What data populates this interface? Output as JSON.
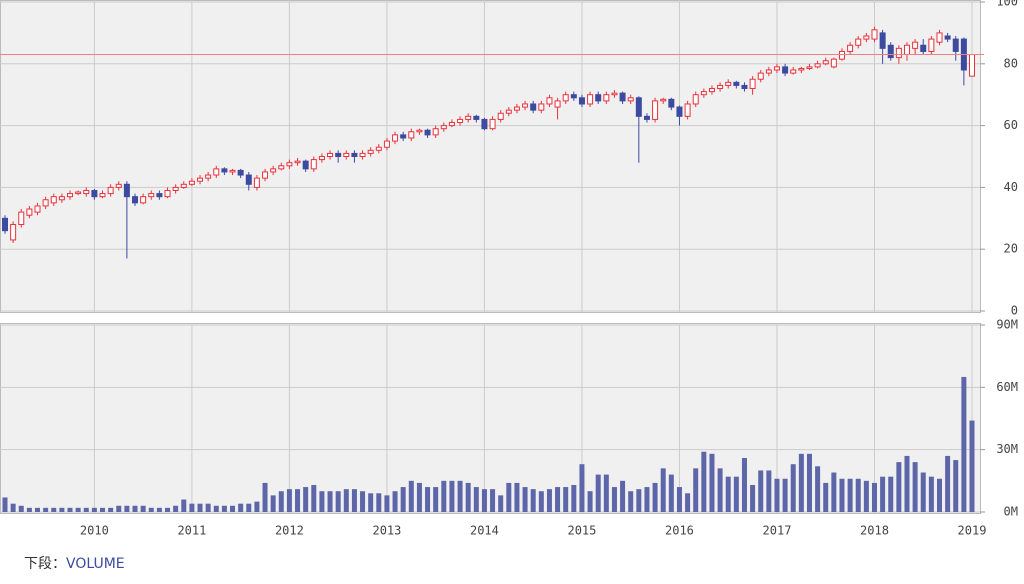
{
  "chart_data": [
    {
      "type": "candlestick",
      "up_color": "#e8323c",
      "down_color": "#3c4aa0",
      "grid": true,
      "ylim": [
        0,
        100
      ],
      "yticks": [
        0,
        20,
        40,
        60,
        80,
        100
      ],
      "categories": [
        null,
        null,
        null,
        null,
        null,
        null,
        null,
        null,
        null,
        null,
        null,
        "2010",
        null,
        null,
        null,
        null,
        null,
        null,
        null,
        null,
        null,
        null,
        null,
        "2011",
        null,
        null,
        null,
        null,
        null,
        null,
        null,
        null,
        null,
        null,
        null,
        "2012",
        null,
        null,
        null,
        null,
        null,
        null,
        null,
        null,
        null,
        null,
        null,
        "2013",
        null,
        null,
        null,
        null,
        null,
        null,
        null,
        null,
        null,
        null,
        null,
        "2014",
        null,
        null,
        null,
        null,
        null,
        null,
        null,
        null,
        null,
        null,
        null,
        "2015",
        null,
        null,
        null,
        null,
        null,
        null,
        null,
        null,
        null,
        null,
        null,
        "2016",
        null,
        null,
        null,
        null,
        null,
        null,
        null,
        null,
        null,
        null,
        null,
        "2017",
        null,
        null,
        null,
        null,
        null,
        null,
        null,
        null,
        null,
        null,
        null,
        "2018",
        null,
        null,
        null,
        null,
        null,
        null,
        null,
        null,
        null,
        null,
        null,
        "2019"
      ],
      "open": [
        30,
        23,
        28,
        31,
        32,
        34,
        35,
        36,
        37,
        38,
        38,
        39,
        37,
        38,
        40,
        41,
        37,
        35,
        37,
        38,
        37,
        39,
        40,
        41,
        42,
        43,
        44,
        46,
        45,
        45.5,
        44,
        40,
        43,
        45,
        46,
        47,
        48,
        48.5,
        46,
        49,
        50,
        51,
        50,
        51,
        50,
        51,
        52,
        53,
        55,
        57,
        56,
        58,
        58.5,
        57,
        59,
        60,
        61,
        62,
        63,
        62,
        59,
        62,
        64,
        65,
        66,
        67,
        65,
        67,
        66,
        68,
        70,
        69,
        67,
        70,
        68,
        70,
        70.5,
        68,
        69,
        63,
        62,
        68,
        68.5,
        66,
        63,
        67,
        70,
        71,
        72,
        73,
        74,
        73,
        72,
        75,
        77,
        78,
        79,
        77,
        78,
        78.5,
        79,
        80,
        79,
        81.5,
        84,
        86,
        88,
        88,
        90,
        86,
        82,
        83,
        85,
        86,
        84,
        87,
        89,
        88,
        88,
        76
      ],
      "high": [
        31,
        29,
        33,
        34,
        35,
        37,
        38,
        38,
        39,
        39,
        40,
        39.5,
        39,
        41,
        42,
        42,
        38,
        38,
        39,
        39,
        40,
        41,
        42,
        43,
        44,
        45,
        47,
        46.5,
        46,
        46,
        45,
        44,
        46,
        47,
        48,
        49,
        49.5,
        49,
        50,
        51,
        52,
        52,
        52,
        52,
        52,
        53,
        54,
        56,
        58,
        58,
        59,
        59,
        59,
        60,
        61,
        62,
        63,
        64,
        63.5,
        62.5,
        63,
        65,
        66,
        67,
        68,
        68,
        68,
        70,
        69,
        71,
        71,
        70,
        71,
        71,
        71,
        71.5,
        71,
        70,
        69.5,
        64,
        69,
        69,
        69,
        66.5,
        68,
        71,
        72,
        73,
        74,
        75,
        74.5,
        74,
        76,
        78,
        79,
        80,
        80,
        79,
        79,
        80,
        81,
        82,
        82,
        85,
        87,
        89,
        90,
        92,
        91,
        87,
        86,
        87,
        88,
        88,
        89,
        91,
        90,
        89,
        88.5,
        83
      ],
      "low": [
        25,
        22,
        27,
        30,
        31,
        33,
        34,
        35,
        36,
        37.5,
        37,
        36,
        36.5,
        37,
        39,
        17,
        34,
        34.5,
        36,
        36,
        36.5,
        38,
        39.5,
        40.5,
        41,
        42,
        43,
        44,
        44,
        43,
        39,
        39,
        42,
        44,
        45.5,
        46,
        47,
        45,
        45,
        48,
        49,
        48,
        49,
        48,
        49,
        50,
        51,
        52,
        54,
        55,
        55,
        57,
        56,
        56,
        58,
        59.5,
        60,
        61,
        61,
        58.5,
        58.5,
        61,
        63,
        64,
        65,
        64,
        64,
        66,
        62,
        67,
        68,
        66,
        66,
        67,
        67,
        69,
        67,
        67,
        48,
        61,
        61,
        67,
        65,
        60,
        62,
        66,
        69,
        70,
        71,
        72,
        72,
        71,
        70,
        74,
        76,
        77,
        76,
        76.5,
        77,
        78,
        78.5,
        79.5,
        78.5,
        81,
        83,
        85,
        87,
        87,
        80,
        81,
        80,
        81,
        83,
        83,
        83,
        86,
        87,
        81,
        73,
        76
      ],
      "close": [
        26,
        28,
        32,
        33,
        34,
        36,
        37,
        37,
        38,
        38.5,
        39,
        37,
        38,
        40,
        41,
        37,
        35,
        37,
        38,
        37,
        39,
        40,
        41,
        42,
        43,
        44,
        46,
        45,
        45.5,
        44,
        41,
        43,
        45,
        46,
        47,
        48,
        48.5,
        46,
        49,
        50,
        51,
        50,
        51,
        50,
        51,
        52,
        53,
        55,
        57,
        56,
        58,
        58.5,
        57,
        59,
        60,
        61,
        62,
        63,
        62,
        59,
        62,
        64,
        65,
        66,
        67,
        65,
        67,
        69,
        68,
        70,
        69,
        67,
        70,
        68,
        70,
        70.5,
        68,
        69,
        63,
        62,
        68,
        68.5,
        66,
        63,
        67,
        70,
        71,
        72,
        73,
        74,
        73,
        72,
        75,
        77,
        78,
        79,
        77,
        78,
        78.5,
        79,
        80,
        81,
        81.5,
        84,
        86,
        88,
        89,
        91,
        85,
        82,
        85,
        86,
        87,
        84,
        88,
        90,
        88,
        84,
        78,
        83
      ]
    },
    {
      "type": "bar",
      "color": "#5c66a8",
      "grid": true,
      "ylim": [
        0,
        90
      ],
      "yticks": [
        {
          "value": 0,
          "label": "0M"
        },
        {
          "value": 30,
          "label": "30M"
        },
        {
          "value": 60,
          "label": "60M"
        },
        {
          "value": 90,
          "label": "90M"
        }
      ],
      "categories": [
        null,
        null,
        null,
        null,
        null,
        null,
        null,
        null,
        null,
        null,
        null,
        "2010",
        null,
        null,
        null,
        null,
        null,
        null,
        null,
        null,
        null,
        null,
        null,
        "2011",
        null,
        null,
        null,
        null,
        null,
        null,
        null,
        null,
        null,
        null,
        null,
        "2012",
        null,
        null,
        null,
        null,
        null,
        null,
        null,
        null,
        null,
        null,
        null,
        "2013",
        null,
        null,
        null,
        null,
        null,
        null,
        null,
        null,
        null,
        null,
        null,
        "2014",
        null,
        null,
        null,
        null,
        null,
        null,
        null,
        null,
        null,
        null,
        null,
        "2015",
        null,
        null,
        null,
        null,
        null,
        null,
        null,
        null,
        null,
        null,
        null,
        "2016",
        null,
        null,
        null,
        null,
        null,
        null,
        null,
        null,
        null,
        null,
        null,
        "2017",
        null,
        null,
        null,
        null,
        null,
        null,
        null,
        null,
        null,
        null,
        null,
        "2018",
        null,
        null,
        null,
        null,
        null,
        null,
        null,
        null,
        null,
        null,
        null,
        "2019"
      ],
      "values": [
        7,
        4,
        3,
        2,
        2,
        2,
        2,
        2,
        2,
        2,
        2,
        2,
        2,
        2,
        3,
        3,
        3,
        3,
        2,
        2,
        2,
        3,
        6,
        4,
        4,
        4,
        3,
        3,
        3,
        4,
        4,
        5,
        14,
        8,
        10,
        11,
        11,
        12,
        13,
        10,
        10,
        10,
        11,
        11,
        10,
        9,
        9,
        8,
        10,
        12,
        15,
        14,
        12,
        12,
        15,
        15,
        15,
        14,
        12,
        11,
        11,
        8,
        14,
        14,
        12,
        11,
        10,
        11,
        12,
        12,
        13,
        23,
        10,
        18,
        18,
        12,
        15,
        10,
        11,
        12,
        14,
        21,
        18,
        12,
        9,
        21,
        29,
        28,
        21,
        17,
        17,
        26,
        13,
        20,
        20,
        16,
        16,
        23,
        28,
        28,
        22,
        14,
        19,
        16,
        16,
        16,
        15,
        14,
        17,
        17,
        24,
        27,
        24,
        19,
        17,
        16,
        27,
        25,
        65,
        44
      ]
    }
  ],
  "footer": {
    "label": "下段：",
    "link": "VOLUME"
  }
}
